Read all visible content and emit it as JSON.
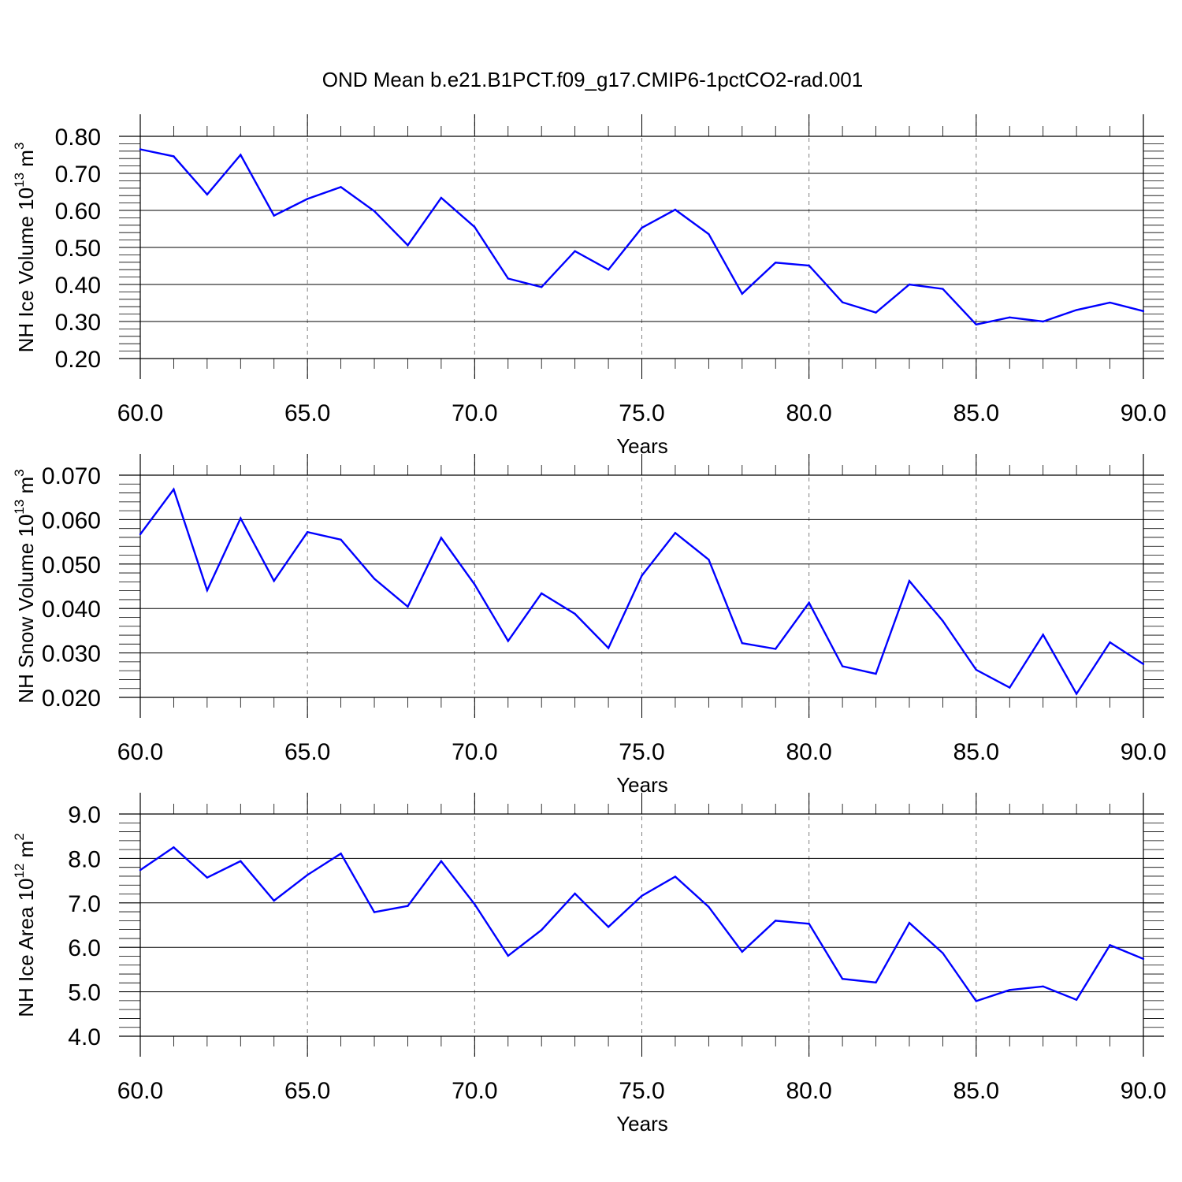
{
  "title": "OND Mean b.e21.B1PCT.f09_g17.CMIP6-1pctCO2-rad.001",
  "colors": {
    "line": "#0000ff",
    "axis": "#000000",
    "grid": "#808080",
    "background": "#ffffff"
  },
  "chart_data": [
    {
      "type": "line",
      "ylabel": "NH Ice Volume 10",
      "ylabel_sup": "13",
      "ylabel_unit": " m",
      "ylabel_unit_sup": "3",
      "xlabel": "Years",
      "xlim": [
        60,
        90
      ],
      "ylim": [
        0.2,
        0.8
      ],
      "x_ticks": [
        "60.0",
        "65.0",
        "70.0",
        "75.0",
        "80.0",
        "85.0",
        "90.0"
      ],
      "y_ticks": [
        "0.20",
        "0.30",
        "0.40",
        "0.50",
        "0.60",
        "0.70",
        "0.80"
      ],
      "grid": "vertical dashed at x major ticks",
      "x": [
        60,
        61,
        62,
        63,
        64,
        65,
        66,
        67,
        68,
        69,
        70,
        71,
        72,
        73,
        74,
        75,
        76,
        77,
        78,
        79,
        80,
        81,
        82,
        83,
        84,
        85,
        86,
        87,
        88,
        89,
        90
      ],
      "values": [
        0.765,
        0.746,
        0.643,
        0.75,
        0.586,
        0.631,
        0.663,
        0.598,
        0.506,
        0.634,
        0.555,
        0.416,
        0.393,
        0.49,
        0.44,
        0.553,
        0.602,
        0.536,
        0.375,
        0.459,
        0.451,
        0.352,
        0.324,
        0.4,
        0.388,
        0.292,
        0.311,
        0.3,
        0.331,
        0.351,
        0.328
      ]
    },
    {
      "type": "line",
      "ylabel": "NH Snow Volume 10",
      "ylabel_sup": "13",
      "ylabel_unit": " m",
      "ylabel_unit_sup": "3",
      "xlabel": "Years",
      "xlim": [
        60,
        90
      ],
      "ylim": [
        0.02,
        0.07
      ],
      "x_ticks": [
        "60.0",
        "65.0",
        "70.0",
        "75.0",
        "80.0",
        "85.0",
        "90.0"
      ],
      "y_ticks": [
        "0.020",
        "0.030",
        "0.040",
        "0.050",
        "0.060",
        "0.070"
      ],
      "grid": "vertical dashed at x major ticks",
      "x": [
        60,
        61,
        62,
        63,
        64,
        65,
        66,
        67,
        68,
        69,
        70,
        71,
        72,
        73,
        74,
        75,
        76,
        77,
        78,
        79,
        80,
        81,
        82,
        83,
        84,
        85,
        86,
        87,
        88,
        89,
        90
      ],
      "values": [
        0.0567,
        0.0668,
        0.0441,
        0.0603,
        0.0462,
        0.0572,
        0.0555,
        0.0467,
        0.0404,
        0.0559,
        0.0454,
        0.0327,
        0.0434,
        0.0388,
        0.0311,
        0.0474,
        0.057,
        0.051,
        0.0322,
        0.0309,
        0.0413,
        0.027,
        0.0253,
        0.0462,
        0.0372,
        0.0262,
        0.0222,
        0.0341,
        0.0208,
        0.0324,
        0.0275
      ]
    },
    {
      "type": "line",
      "ylabel": "NH Ice Area 10",
      "ylabel_sup": "12",
      "ylabel_unit": " m",
      "ylabel_unit_sup": "2",
      "xlabel": "Years",
      "xlim": [
        60,
        90
      ],
      "ylim": [
        4.0,
        9.0
      ],
      "x_ticks": [
        "60.0",
        "65.0",
        "70.0",
        "75.0",
        "80.0",
        "85.0",
        "90.0"
      ],
      "y_ticks": [
        "4.0",
        "5.0",
        "6.0",
        "7.0",
        "8.0",
        "9.0"
      ],
      "grid": "vertical dashed at x major ticks",
      "x": [
        60,
        61,
        62,
        63,
        64,
        65,
        66,
        67,
        68,
        69,
        70,
        71,
        72,
        73,
        74,
        75,
        76,
        77,
        78,
        79,
        80,
        81,
        82,
        83,
        84,
        85,
        86,
        87,
        88,
        89,
        90
      ],
      "values": [
        7.74,
        8.25,
        7.57,
        7.94,
        7.05,
        7.63,
        8.11,
        6.79,
        6.93,
        7.94,
        6.97,
        5.81,
        6.39,
        7.21,
        6.46,
        7.16,
        7.59,
        6.91,
        5.9,
        6.6,
        6.53,
        5.29,
        5.21,
        6.55,
        5.87,
        4.79,
        5.04,
        5.12,
        4.82,
        6.05,
        5.74
      ]
    }
  ]
}
